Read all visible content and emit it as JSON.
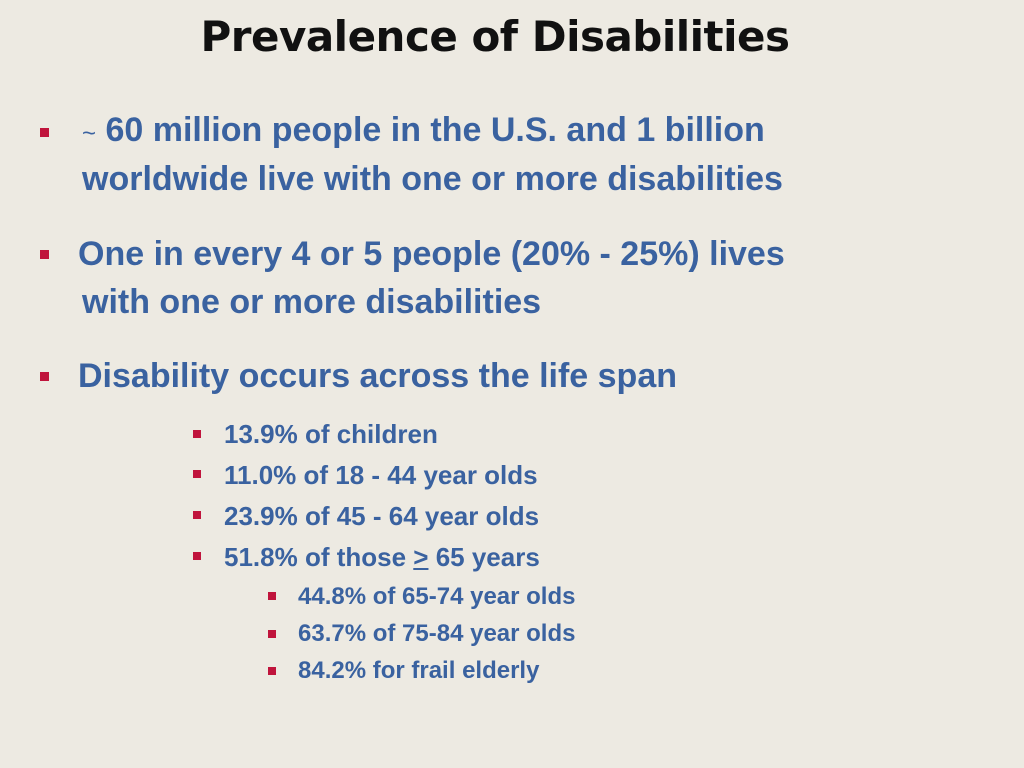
{
  "slide": {
    "title": "Prevalence of Disabilities",
    "bullets": [
      {
        "prefix": "~",
        "line1": "60 million people in the U.S. and 1 billion",
        "line2": "worldwide live with one or more disabilities"
      },
      {
        "line1": "One in every 4 or 5 people (20% - 25%) lives",
        "line2": "with one or more disabilities"
      },
      {
        "line1": "Disability occurs across the life span",
        "subitems": [
          "13.9% of children",
          "11.0% of 18 - 44 year olds",
          "23.9% of 45 - 64 year olds",
          {
            "before": "51.8% of those ",
            "symbol": ">",
            "after": " 65 years"
          }
        ],
        "subsubitems": [
          "44.8% of 65-74 year olds",
          "63.7% of 75-84 year olds",
          "84.2% for frail elderly"
        ]
      }
    ],
    "colors": {
      "background": "#edeae2",
      "title": "#111111",
      "text": "#3a62a0",
      "bullet": "#c0143c"
    }
  }
}
